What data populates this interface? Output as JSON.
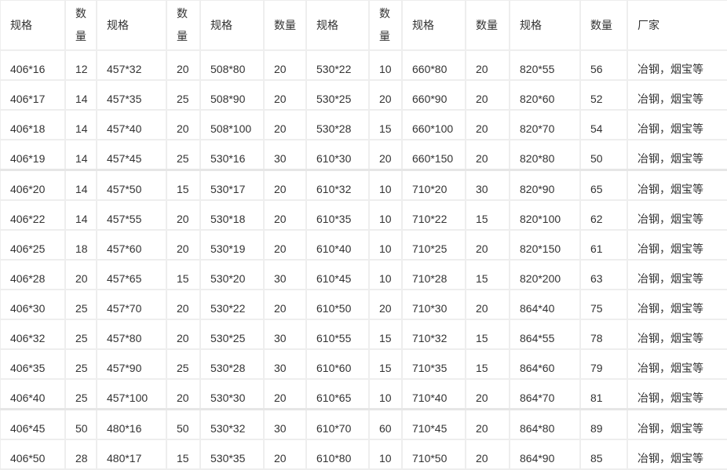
{
  "table": {
    "headers": [
      "规格",
      "数量",
      "规格",
      "数量",
      "规格",
      "数量",
      "规格",
      "数量",
      "规格",
      "数量",
      "规格",
      "数量",
      "厂家"
    ],
    "rows": [
      [
        "406*16",
        "12",
        "457*32",
        "20",
        "508*80",
        "20",
        "530*22",
        "10",
        "660*80",
        "20",
        "820*55",
        "56",
        "冶钢，烟宝等"
      ],
      [
        "406*17",
        "14",
        "457*35",
        "25",
        "508*90",
        "20",
        "530*25",
        "20",
        "660*90",
        "20",
        "820*60",
        "52",
        "冶钢，烟宝等"
      ],
      [
        "406*18",
        "14",
        "457*40",
        "20",
        "508*100",
        "20",
        "530*28",
        "15",
        "660*100",
        "20",
        "820*70",
        "54",
        "冶钢，烟宝等"
      ],
      [
        "406*19",
        "14",
        "457*45",
        "25",
        "530*16",
        "30",
        "610*30",
        "20",
        "660*150",
        "20",
        "820*80",
        "50",
        "冶钢，烟宝等"
      ],
      [
        "406*20",
        "14",
        "457*50",
        "15",
        "530*17",
        "20",
        "610*32",
        "10",
        "710*20",
        "30",
        "820*90",
        "65",
        "冶钢，烟宝等"
      ],
      [
        "406*22",
        "14",
        "457*55",
        "20",
        "530*18",
        "20",
        "610*35",
        "10",
        "710*22",
        "15",
        "820*100",
        "62",
        "冶钢，烟宝等"
      ],
      [
        "406*25",
        "18",
        "457*60",
        "20",
        "530*19",
        "20",
        "610*40",
        "10",
        "710*25",
        "20",
        "820*150",
        "61",
        "冶钢，烟宝等"
      ],
      [
        "406*28",
        "20",
        "457*65",
        "15",
        "530*20",
        "30",
        "610*45",
        "10",
        "710*28",
        "15",
        "820*200",
        "63",
        "冶钢，烟宝等"
      ],
      [
        "406*30",
        "25",
        "457*70",
        "20",
        "530*22",
        "20",
        "610*50",
        "20",
        "710*30",
        "20",
        "864*40",
        "75",
        "冶钢，烟宝等"
      ],
      [
        "406*32",
        "25",
        "457*80",
        "20",
        "530*25",
        "30",
        "610*55",
        "15",
        "710*32",
        "15",
        "864*55",
        "78",
        "冶钢，烟宝等"
      ],
      [
        "406*35",
        "25",
        "457*90",
        "25",
        "530*28",
        "30",
        "610*60",
        "15",
        "710*35",
        "15",
        "864*60",
        "79",
        "冶钢，烟宝等"
      ],
      [
        "406*40",
        "25",
        "457*100",
        "20",
        "530*30",
        "20",
        "610*65",
        "10",
        "710*40",
        "20",
        "864*70",
        "81",
        "冶钢，烟宝等"
      ],
      [
        "406*45",
        "50",
        "480*16",
        "50",
        "530*32",
        "30",
        "610*70",
        "60",
        "710*45",
        "20",
        "864*80",
        "89",
        "冶钢，烟宝等"
      ],
      [
        "406*50",
        "28",
        "480*17",
        "15",
        "530*35",
        "20",
        "610*80",
        "10",
        "710*50",
        "20",
        "864*90",
        "85",
        "冶钢，烟宝等"
      ]
    ]
  }
}
